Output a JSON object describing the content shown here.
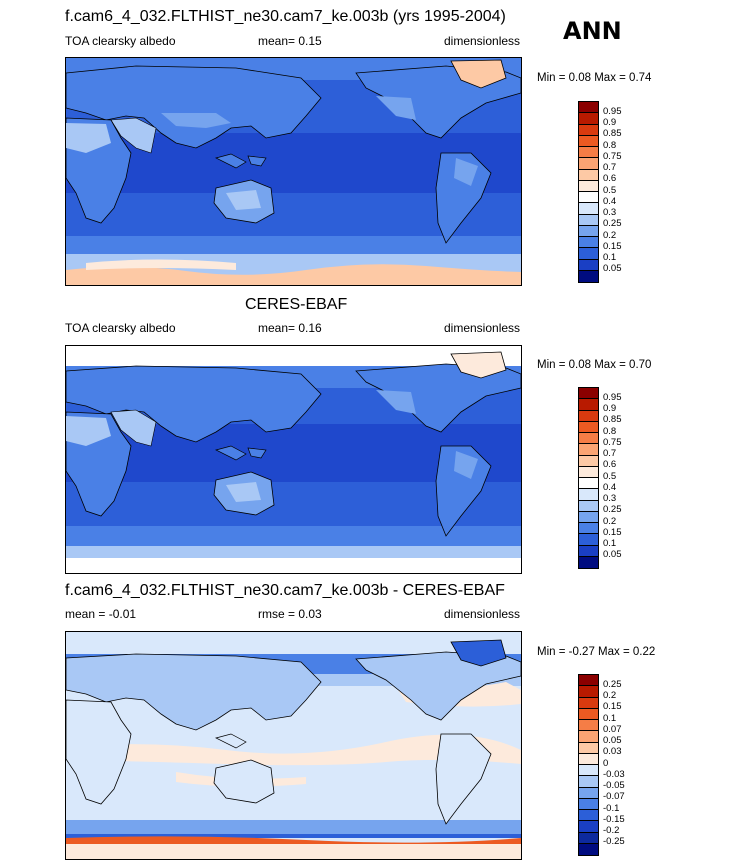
{
  "panels": [
    {
      "title": "f.cam6_4_032.FLTHIST_ne30.cam7_ke.003b (yrs 1995-2004)",
      "left_label": "TOA clearsky albedo",
      "center_label": "mean=   0.15",
      "right_label": "dimensionless",
      "minmax": "Min =   0.08 Max =   0.74"
    },
    {
      "title": "CERES-EBAF",
      "left_label": "TOA clearsky albedo",
      "center_label": "mean=   0.16",
      "right_label": "dimensionless",
      "minmax": "Min =   0.08 Max =   0.70"
    },
    {
      "title": "f.cam6_4_032.FLTHIST_ne30.cam7_ke.003b - CERES-EBAF",
      "left_label": "mean =  -0.01",
      "center_label": "rmse =   0.03",
      "right_label": "dimensionless",
      "minmax": "Min =  -0.27 Max =   0.22"
    }
  ],
  "season": "ANN",
  "colorbars": {
    "absolute": {
      "labels": [
        "0.95",
        "0.9",
        "0.85",
        "0.8",
        "0.75",
        "0.7",
        "0.6",
        "0.5",
        "0.4",
        "0.3",
        "0.25",
        "0.2",
        "0.15",
        "0.1",
        "0.05"
      ],
      "colors": [
        "#8b0000",
        "#b81a00",
        "#d93a0f",
        "#ec5a22",
        "#f57d46",
        "#fba473",
        "#fdc9a5",
        "#fdeadc",
        "#ffffff",
        "#d9e8fb",
        "#a9c8f5",
        "#76a4ee",
        "#4a80e6",
        "#2c5fd8",
        "#1a3fc4",
        "#000c80"
      ]
    },
    "difference": {
      "labels": [
        "0.25",
        "0.2",
        "0.15",
        "0.1",
        "0.07",
        "0.05",
        "0.03",
        "0",
        "-0.03",
        "-0.05",
        "-0.07",
        "-0.1",
        "-0.15",
        "-0.2",
        "-0.25"
      ],
      "colors": [
        "#8b0000",
        "#b81a00",
        "#d93a0f",
        "#ec5a22",
        "#f57d46",
        "#fba473",
        "#fdc9a5",
        "#fdeadc",
        "#d9e8fb",
        "#a9c8f5",
        "#76a4ee",
        "#4a80e6",
        "#2c5fd8",
        "#1a3fc4",
        "#0d2a9e",
        "#000c80"
      ]
    }
  },
  "map_colors": {
    "ocean_abs": "#2d5fd8",
    "ocean_tropics": "#1f48cc",
    "land_abs": "#4a80e6",
    "desert": "#a9c8f5",
    "ice": "#fdc9a5",
    "ocean_diff": "#d9e8fb",
    "diff_pos": "#fdeadc",
    "diff_neg": "#76a4ee"
  }
}
